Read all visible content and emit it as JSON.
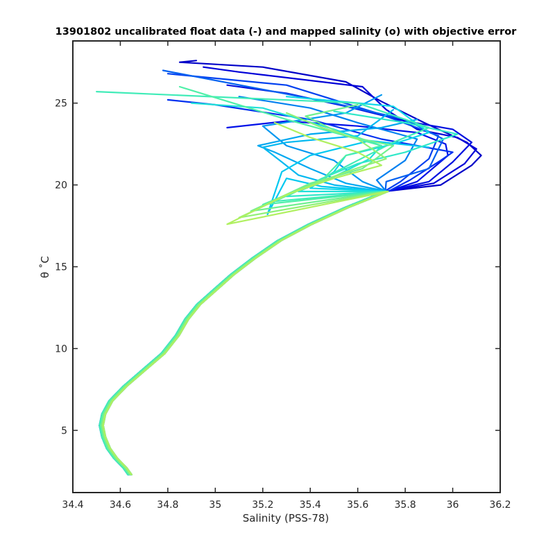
{
  "chart_data": {
    "type": "line",
    "title": "13901802 uncalibrated float data (-) and mapped salinity (o) with objective error",
    "xlabel": "Salinity (PSS-78)",
    "ylabel": "θ ˚C",
    "xlim": [
      34.4,
      36.2
    ],
    "ylim": [
      1.2,
      28.8
    ],
    "xticks": [
      "34.4",
      "34.6",
      "34.8",
      "35",
      "35.2",
      "35.4",
      "35.6",
      "35.8",
      "36",
      "36.2"
    ],
    "yticks": [
      "5",
      "10",
      "15",
      "20",
      "25"
    ],
    "grid": false,
    "legend": "none",
    "colormap": [
      "#0000d0",
      "#0020f0",
      "#0090f0",
      "#00c8f0",
      "#20e8d0",
      "#50f0b0",
      "#a0f070"
    ],
    "common_deep_path": [
      [
        34.64,
        2.3
      ],
      [
        34.62,
        2.7
      ],
      [
        34.58,
        3.3
      ],
      [
        34.55,
        3.9
      ],
      [
        34.53,
        4.6
      ],
      [
        34.52,
        5.3
      ],
      [
        34.53,
        6.0
      ],
      [
        34.56,
        6.8
      ],
      [
        34.62,
        7.7
      ],
      [
        34.7,
        8.7
      ],
      [
        34.78,
        9.7
      ],
      [
        34.84,
        10.8
      ],
      [
        34.88,
        11.8
      ],
      [
        34.93,
        12.7
      ],
      [
        35.0,
        13.6
      ],
      [
        35.07,
        14.5
      ],
      [
        35.16,
        15.5
      ],
      [
        35.27,
        16.6
      ],
      [
        35.4,
        17.6
      ],
      [
        35.55,
        18.6
      ],
      [
        35.72,
        19.6
      ]
    ],
    "series": [
      {
        "color": "#0000c8",
        "values": [
          [
            35.95,
            20.0
          ],
          [
            36.08,
            21.2
          ],
          [
            36.12,
            21.8
          ],
          [
            36.06,
            22.6
          ],
          [
            35.88,
            23.8
          ],
          [
            35.7,
            25.1
          ],
          [
            35.55,
            26.3
          ],
          [
            35.2,
            27.2
          ],
          [
            34.85,
            27.5
          ],
          [
            34.92,
            27.6
          ]
        ]
      },
      {
        "color": "#0000d8",
        "values": [
          [
            35.92,
            20.1
          ],
          [
            36.05,
            21.3
          ],
          [
            36.1,
            22.2
          ],
          [
            36.02,
            22.9
          ],
          [
            35.85,
            23.4
          ],
          [
            35.72,
            24.6
          ],
          [
            35.62,
            26.0
          ],
          [
            35.1,
            26.9
          ],
          [
            34.95,
            27.2
          ]
        ]
      },
      {
        "color": "#0010e0",
        "values": [
          [
            35.9,
            20.2
          ],
          [
            36.0,
            21.4
          ],
          [
            36.08,
            22.6
          ],
          [
            36.0,
            23.4
          ],
          [
            35.8,
            23.9
          ],
          [
            35.55,
            24.8
          ],
          [
            35.3,
            25.6
          ],
          [
            35.05,
            26.1
          ]
        ]
      },
      {
        "color": "#0010e8",
        "values": [
          [
            35.85,
            20.2
          ],
          [
            35.98,
            21.8
          ],
          [
            35.97,
            22.5
          ],
          [
            35.85,
            23.2
          ],
          [
            35.6,
            23.6
          ],
          [
            35.3,
            23.9
          ],
          [
            35.05,
            23.5
          ]
        ]
      },
      {
        "color": "#0030f0",
        "values": [
          [
            35.82,
            20.3
          ],
          [
            35.95,
            21.5
          ],
          [
            36.0,
            22.0
          ],
          [
            35.7,
            22.8
          ],
          [
            35.4,
            24.0
          ],
          [
            35.0,
            24.9
          ],
          [
            34.8,
            25.2
          ]
        ]
      },
      {
        "color": "#0040f0",
        "values": [
          [
            35.78,
            20.2
          ],
          [
            35.9,
            21.6
          ],
          [
            35.94,
            23.0
          ],
          [
            35.7,
            24.3
          ],
          [
            35.3,
            26.1
          ],
          [
            34.8,
            26.8
          ]
        ]
      },
      {
        "color": "#0060f0",
        "values": [
          [
            35.72,
            20.2
          ],
          [
            35.9,
            21.0
          ],
          [
            35.96,
            22.8
          ],
          [
            35.8,
            24.0
          ],
          [
            35.5,
            25.0
          ],
          [
            34.78,
            27.0
          ]
        ]
      },
      {
        "color": "#0080f0",
        "values": [
          [
            35.68,
            20.3
          ],
          [
            35.8,
            21.5
          ],
          [
            35.85,
            22.8
          ],
          [
            35.6,
            23.8
          ],
          [
            35.4,
            24.7
          ],
          [
            35.1,
            25.4
          ]
        ]
      },
      {
        "color": "#0098f0",
        "values": [
          [
            35.62,
            20.2
          ],
          [
            35.5,
            21.5
          ],
          [
            35.3,
            22.4
          ],
          [
            35.2,
            23.6
          ],
          [
            35.55,
            24.4
          ],
          [
            35.7,
            25.5
          ]
        ]
      },
      {
        "color": "#00a8f0",
        "values": [
          [
            35.55,
            20.1
          ],
          [
            35.4,
            21.0
          ],
          [
            35.25,
            22.0
          ],
          [
            35.18,
            22.4
          ],
          [
            35.4,
            23.1
          ],
          [
            35.7,
            23.5
          ],
          [
            35.85,
            24.0
          ]
        ]
      },
      {
        "color": "#00b8f0",
        "values": [
          [
            35.5,
            20.0
          ],
          [
            35.35,
            20.6
          ],
          [
            35.28,
            21.4
          ],
          [
            35.2,
            22.3
          ],
          [
            35.3,
            22.6
          ],
          [
            35.6,
            23.0
          ],
          [
            35.75,
            24.6
          ]
        ]
      },
      {
        "color": "#00c8f0",
        "values": [
          [
            35.45,
            19.9
          ],
          [
            35.3,
            20.4
          ],
          [
            35.22,
            18.2
          ],
          [
            35.28,
            20.8
          ],
          [
            35.4,
            21.8
          ],
          [
            35.65,
            22.7
          ],
          [
            35.9,
            22.3
          ]
        ]
      },
      {
        "color": "#10d8e8",
        "values": [
          [
            35.4,
            19.8
          ],
          [
            35.5,
            20.8
          ],
          [
            35.55,
            21.8
          ],
          [
            35.75,
            22.5
          ],
          [
            35.9,
            23.2
          ],
          [
            35.75,
            24.8
          ],
          [
            35.3,
            25.4
          ]
        ]
      },
      {
        "color": "#20e0d8",
        "values": [
          [
            35.35,
            19.6
          ],
          [
            35.5,
            20.5
          ],
          [
            35.65,
            21.6
          ],
          [
            35.7,
            22.4
          ],
          [
            35.5,
            23.4
          ],
          [
            35.2,
            24.7
          ],
          [
            34.9,
            25.0
          ]
        ]
      },
      {
        "color": "#30e8c8",
        "values": [
          [
            35.3,
            19.3
          ],
          [
            35.45,
            20.4
          ],
          [
            35.6,
            21.3
          ],
          [
            35.8,
            22.0
          ],
          [
            36.02,
            23.1
          ],
          [
            35.8,
            23.8
          ],
          [
            35.5,
            24.5
          ]
        ]
      },
      {
        "color": "#40ecb8",
        "values": [
          [
            35.25,
            19.0
          ],
          [
            35.4,
            20.0
          ],
          [
            35.6,
            21.5
          ],
          [
            35.75,
            22.6
          ],
          [
            35.9,
            23.5
          ],
          [
            35.6,
            25.0
          ],
          [
            34.5,
            25.7
          ]
        ]
      },
      {
        "color": "#50f0a8",
        "values": [
          [
            35.2,
            18.8
          ],
          [
            35.45,
            20.3
          ],
          [
            35.55,
            21.8
          ],
          [
            35.7,
            22.4
          ],
          [
            35.5,
            23.2
          ],
          [
            35.3,
            24.0
          ],
          [
            34.85,
            26.0
          ]
        ]
      },
      {
        "color": "#70f090",
        "values": [
          [
            35.15,
            18.4
          ],
          [
            35.4,
            20.1
          ],
          [
            35.62,
            21.0
          ],
          [
            35.75,
            22.4
          ],
          [
            35.55,
            23.0
          ],
          [
            35.38,
            24.2
          ],
          [
            35.6,
            24.9
          ]
        ]
      },
      {
        "color": "#90f078",
        "values": [
          [
            35.1,
            18.0
          ],
          [
            35.35,
            19.7
          ],
          [
            35.55,
            20.8
          ],
          [
            35.72,
            21.6
          ],
          [
            35.6,
            22.8
          ],
          [
            35.45,
            23.5
          ],
          [
            35.3,
            24.4
          ]
        ]
      },
      {
        "color": "#b0f060",
        "values": [
          [
            35.05,
            17.6
          ],
          [
            35.3,
            19.4
          ],
          [
            35.5,
            20.4
          ],
          [
            35.7,
            21.2
          ],
          [
            35.6,
            22.0
          ],
          [
            35.4,
            22.9
          ],
          [
            35.25,
            23.8
          ]
        ]
      }
    ]
  }
}
